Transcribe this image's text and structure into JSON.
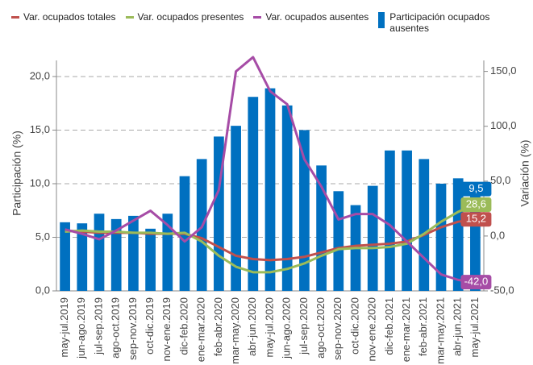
{
  "chart_data": {
    "type": "bar-line",
    "categories": [
      "may-jul.2019",
      "jun-ago.2019",
      "jul-sep.2019",
      "ago-oct.2019",
      "sep-nov.2019",
      "oct-dic.2019",
      "nov-ene.2019",
      "dic-feb.2020",
      "ene-mar.2020",
      "feb-abr.2020",
      "mar-may.2020",
      "abr-jun.2020",
      "may-jul.2020",
      "jun-ago.2020",
      "jul-sep.2020",
      "ago-oct.2020",
      "sep-nov.2020",
      "oct-dic.2020",
      "nov-ene.2020",
      "dic-feb.2021",
      "ene-mar.2021",
      "feb-abr.2021",
      "mar-may.2021",
      "abr-jun.2021",
      "may-jul.2021"
    ],
    "y_label": "Participación (%)",
    "y2_label": "Variación (%)",
    "ylim": [
      0,
      21.5
    ],
    "yticks": [
      {
        "value": 0,
        "label": "0,0"
      },
      {
        "value": 5,
        "label": "5,0"
      },
      {
        "value": 10,
        "label": "10,0"
      },
      {
        "value": 15,
        "label": "15,0"
      },
      {
        "value": 20,
        "label": "20,0"
      }
    ],
    "y2lim": [
      -50,
      160
    ],
    "y2ticks": [
      {
        "value": -50,
        "label": "-50,0"
      },
      {
        "value": 0,
        "label": "0,0"
      },
      {
        "value": 50,
        "label": "50,0"
      },
      {
        "value": 100,
        "label": "100,0"
      },
      {
        "value": 150,
        "label": "150,0"
      }
    ],
    "grid": true,
    "series": [
      {
        "name": "Var. ocupados totales",
        "type": "line",
        "axis": "y2",
        "color": "#c0504d",
        "end_label": "15,2",
        "values": [
          5,
          4,
          3,
          3,
          3,
          2,
          2,
          2,
          -2,
          -10,
          -18,
          -21,
          -22,
          -21,
          -19,
          -15,
          -11,
          -9,
          -8,
          -7,
          -5,
          1,
          8,
          13,
          15.2
        ]
      },
      {
        "name": "Var. ocupados presentes",
        "type": "line",
        "axis": "y2",
        "color": "#9bbb59",
        "end_label": "28,6",
        "values": [
          4,
          5,
          4,
          4,
          3,
          3,
          2,
          3,
          -5,
          -18,
          -28,
          -33,
          -33,
          -30,
          -25,
          -18,
          -12,
          -11,
          -11,
          -10,
          -7,
          2,
          13,
          22,
          28.6
        ]
      },
      {
        "name": "Var. ocupados ausentes",
        "type": "line",
        "axis": "y2",
        "color": "#a64ca6",
        "end_label": "-42,0",
        "values": [
          6,
          2,
          -3,
          5,
          14,
          23,
          10,
          -5,
          8,
          42,
          150,
          163,
          132,
          120,
          70,
          45,
          15,
          20,
          20,
          10,
          -5,
          -20,
          -35,
          -40,
          -42
        ]
      },
      {
        "name": "Participación ocupados ausentes",
        "type": "bar",
        "axis": "y",
        "color": "#0070c0",
        "end_label": "9,5",
        "values": [
          6.4,
          6.3,
          7.2,
          6.7,
          7.0,
          5.8,
          7.2,
          10.7,
          12.3,
          14.4,
          15.4,
          18.1,
          18.9,
          17.3,
          15.0,
          11.7,
          9.3,
          8.0,
          9.8,
          13.1,
          13.1,
          12.3,
          10.0,
          10.5,
          9.5
        ]
      }
    ]
  }
}
